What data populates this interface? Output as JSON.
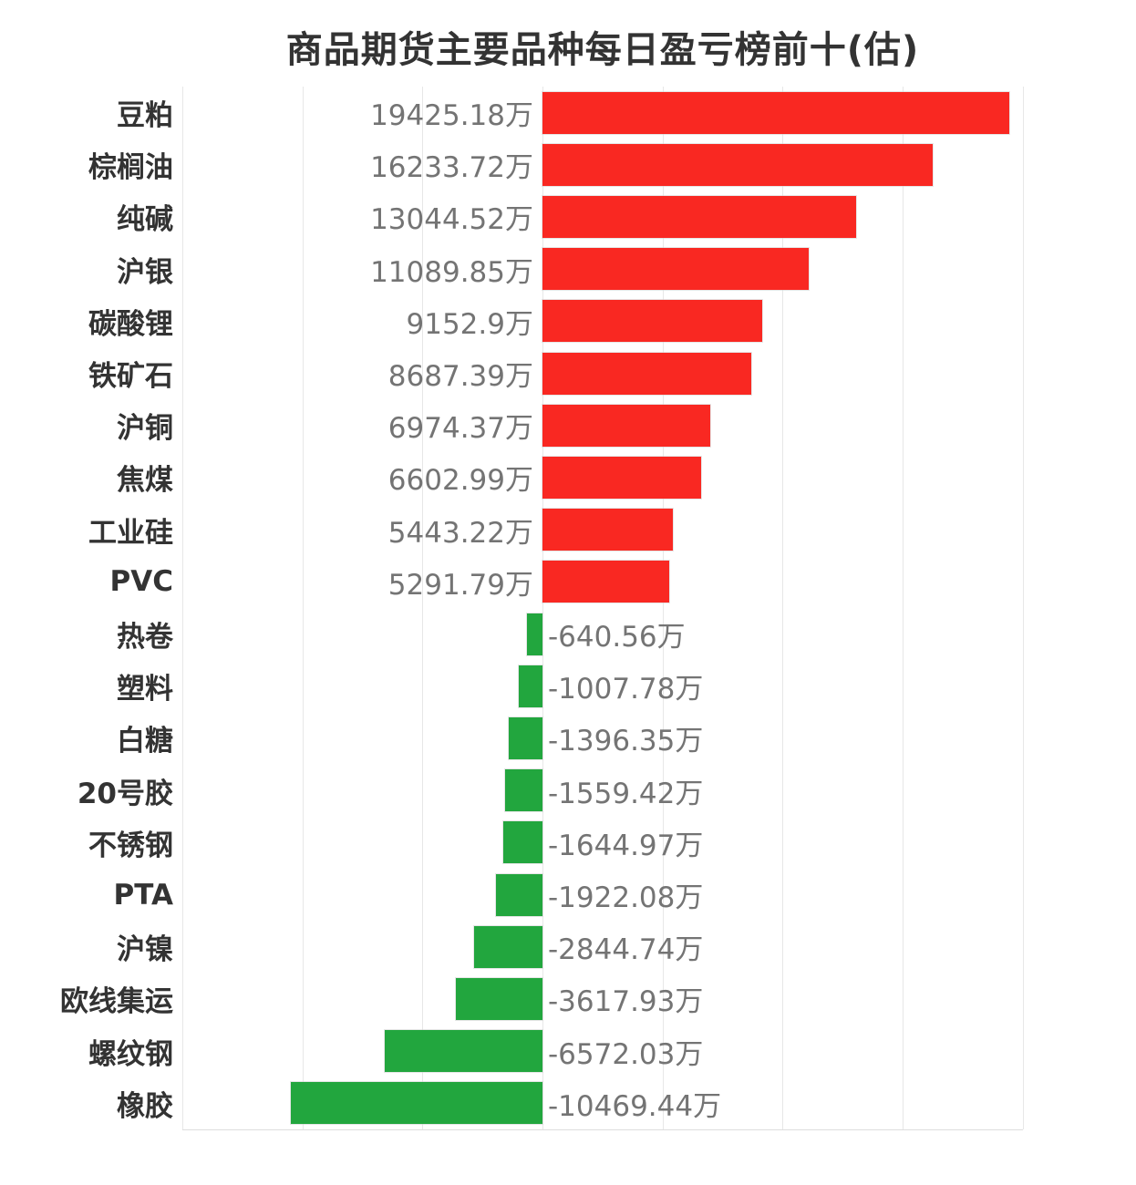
{
  "title": "商品期货主要品种每日盈亏榜前十(估)",
  "colors": {
    "positive_bar": "#f92822",
    "negative_bar": "#22a63e",
    "gridline": "#e7e7e7",
    "axis_line": "#dddddd",
    "title_text": "#333333",
    "category_text": "#333333",
    "value_text": "#747474",
    "background": "#ffffff"
  },
  "chart_data": {
    "type": "bar",
    "orientation": "horizontal",
    "title": "商品期货主要品种每日盈亏榜前十(估)",
    "unit": "万",
    "legend_position": "none",
    "grid": "vertical-lines-on",
    "xlabel": "",
    "ylabel": "",
    "xlim": [
      -15000,
      20000
    ],
    "grid_step": 5000,
    "categories": [
      "豆粕",
      "棕榈油",
      "纯碱",
      "沪银",
      "碳酸锂",
      "铁矿石",
      "沪铜",
      "焦煤",
      "工业硅",
      "PVC",
      "热卷",
      "塑料",
      "白糖",
      "20号胶",
      "不锈钢",
      "PTA",
      "沪镍",
      "欧线集运",
      "螺纹钢",
      "橡胶"
    ],
    "values": [
      19425.18,
      16233.72,
      13044.52,
      11089.85,
      9152.9,
      8687.39,
      6974.37,
      6602.99,
      5443.22,
      5291.79,
      -640.56,
      -1007.78,
      -1396.35,
      -1559.42,
      -1644.97,
      -1922.08,
      -2844.74,
      -3617.93,
      -6572.03,
      -10469.44
    ],
    "value_labels": [
      "19425.18万",
      "16233.72万",
      "13044.52万",
      "11089.85万",
      "9152.9万",
      "8687.39万",
      "6974.37万",
      "6602.99万",
      "5443.22万",
      "5291.79万",
      "-640.56万",
      "-1007.78万",
      "-1396.35万",
      "-1559.42万",
      "-1644.97万",
      "-1922.08万",
      "-2844.74万",
      "-3617.93万",
      "-6572.03万",
      "-10469.44万"
    ]
  }
}
